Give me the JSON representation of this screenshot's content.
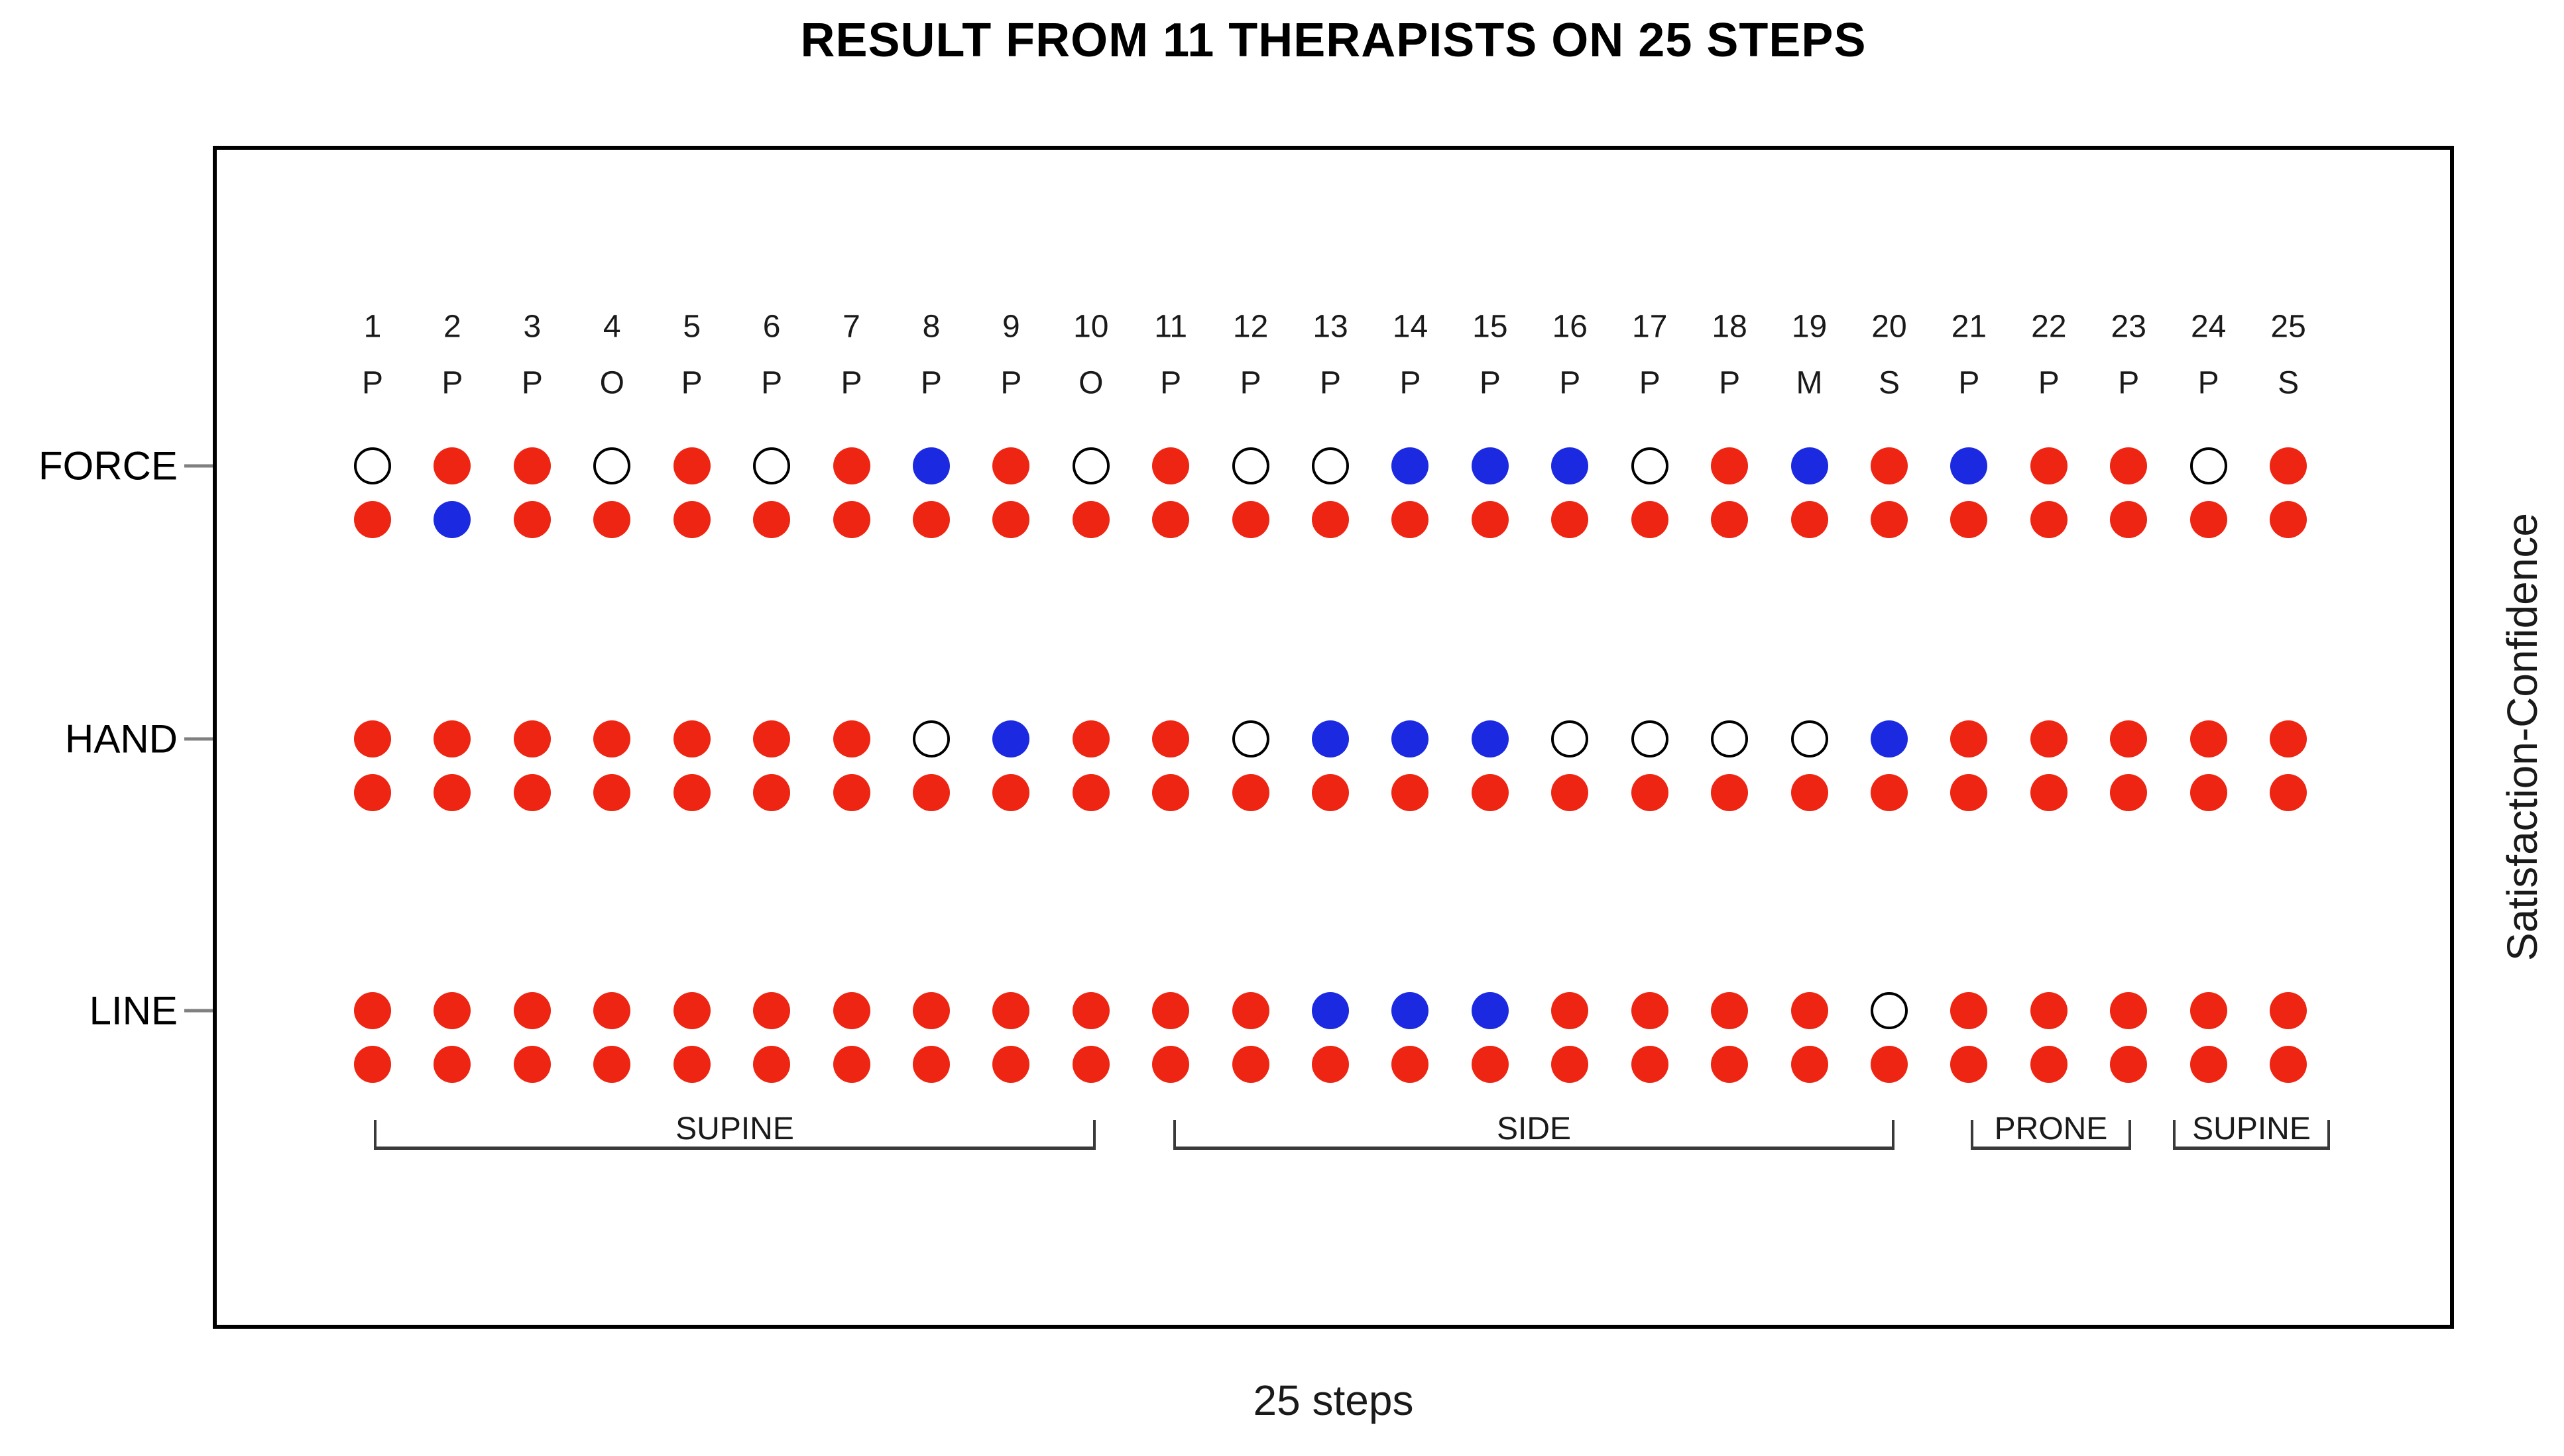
{
  "title": "RESULT FROM 11 THERAPISTS ON 25 STEPS",
  "x_axis_label": "25 steps",
  "y_axis_label": "Satisfaction-Confidence",
  "chart_data": {
    "type": "dot-matrix",
    "title": "RESULT FROM 11 THERAPISTS ON 25 STEPS",
    "xlabel": "25 steps",
    "ylabel": "Satisfaction-Confidence",
    "steps": [
      1,
      2,
      3,
      4,
      5,
      6,
      7,
      8,
      9,
      10,
      11,
      12,
      13,
      14,
      15,
      16,
      17,
      18,
      19,
      20,
      21,
      22,
      23,
      24,
      25
    ],
    "step_letters": [
      "P",
      "P",
      "P",
      "O",
      "P",
      "P",
      "P",
      "P",
      "P",
      "O",
      "P",
      "P",
      "P",
      "P",
      "P",
      "P",
      "P",
      "P",
      "M",
      "S",
      "P",
      "P",
      "P",
      "P",
      "S"
    ],
    "dot_colors": {
      "red": "#ee2512",
      "blue": "#1b2ae0",
      "open_fill": "#ffffff",
      "open_stroke": "#000000"
    },
    "row_groups": [
      {
        "label": "FORCE",
        "rows": [
          {
            "name": "satisfaction",
            "values": [
              "open",
              "red",
              "red",
              "open",
              "red",
              "open",
              "red",
              "blue",
              "red",
              "open",
              "red",
              "open",
              "open",
              "blue",
              "blue",
              "blue",
              "open",
              "red",
              "blue",
              "red",
              "blue",
              "red",
              "red",
              "open",
              "red"
            ]
          },
          {
            "name": "confidence",
            "values": [
              "red",
              "blue",
              "red",
              "red",
              "red",
              "red",
              "red",
              "red",
              "red",
              "red",
              "red",
              "red",
              "red",
              "red",
              "red",
              "red",
              "red",
              "red",
              "red",
              "red",
              "red",
              "red",
              "red",
              "red",
              "red"
            ]
          }
        ]
      },
      {
        "label": "HAND",
        "rows": [
          {
            "name": "satisfaction",
            "values": [
              "red",
              "red",
              "red",
              "red",
              "red",
              "red",
              "red",
              "open",
              "blue",
              "red",
              "red",
              "open",
              "blue",
              "blue",
              "blue",
              "open",
              "open",
              "open",
              "open",
              "blue",
              "red",
              "red",
              "red",
              "red",
              "red"
            ]
          },
          {
            "name": "confidence",
            "values": [
              "red",
              "red",
              "red",
              "red",
              "red",
              "red",
              "red",
              "red",
              "red",
              "red",
              "red",
              "red",
              "red",
              "red",
              "red",
              "red",
              "red",
              "red",
              "red",
              "red",
              "red",
              "red",
              "red",
              "red",
              "red"
            ]
          }
        ]
      },
      {
        "label": "LINE",
        "rows": [
          {
            "name": "satisfaction",
            "values": [
              "red",
              "red",
              "red",
              "red",
              "red",
              "red",
              "red",
              "red",
              "red",
              "red",
              "red",
              "red",
              "blue",
              "blue",
              "blue",
              "red",
              "red",
              "red",
              "red",
              "open",
              "red",
              "red",
              "red",
              "red",
              "red"
            ]
          },
          {
            "name": "confidence",
            "values": [
              "red",
              "red",
              "red",
              "red",
              "red",
              "red",
              "red",
              "red",
              "red",
              "red",
              "red",
              "red",
              "red",
              "red",
              "red",
              "red",
              "red",
              "red",
              "red",
              "red",
              "red",
              "red",
              "red",
              "red",
              "red"
            ]
          }
        ]
      }
    ],
    "position_groups": [
      {
        "label": "SUPINE",
        "from_step": 1,
        "to_step": 10
      },
      {
        "label": "SIDE",
        "from_step": 11,
        "to_step": 20
      },
      {
        "label": "PRONE",
        "from_step": 21,
        "to_step": 23
      },
      {
        "label": "SUPINE",
        "from_step": 24,
        "to_step": 25
      }
    ]
  }
}
